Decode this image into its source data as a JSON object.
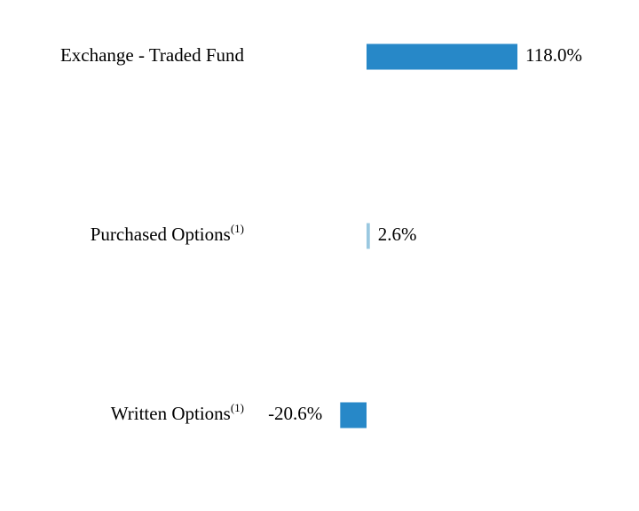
{
  "chart_data": {
    "type": "bar",
    "orientation": "horizontal",
    "categories": [
      "Exchange - Traded Fund",
      "Purchased Options",
      "Written Options"
    ],
    "category_notes": [
      null,
      "(1)",
      "(1)"
    ],
    "values": [
      118.0,
      2.6,
      -20.6
    ],
    "value_labels": [
      "118.0%",
      "2.6%",
      "-20.6%"
    ],
    "colors": [
      "#2788c8",
      "#9ac8e0",
      "#2788c8"
    ]
  }
}
